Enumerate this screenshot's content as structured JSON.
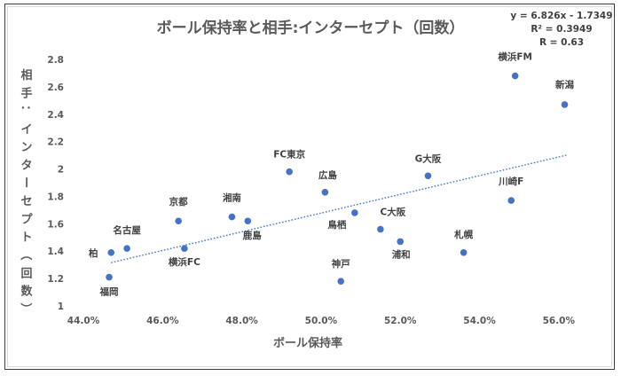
{
  "chart_data": {
    "type": "scatter",
    "title": "ボール保持率と相手:インターセプト（回数）",
    "xlabel": "ボール保持率",
    "ylabel": "相手：インターセプト（回数）",
    "xlim": [
      0.44,
      0.57
    ],
    "ylim": [
      1.0,
      2.8
    ],
    "x_ticks": [
      0.44,
      0.46,
      0.48,
      0.5,
      0.52,
      0.54,
      0.56
    ],
    "x_tick_labels": [
      "44.0%",
      "46.0%",
      "48.0%",
      "50.0%",
      "52.0%",
      "54.0%",
      "56.0%"
    ],
    "y_ticks": [
      1,
      1.2,
      1.4,
      1.6,
      1.8,
      2,
      2.2,
      2.4,
      2.6,
      2.8
    ],
    "y_tick_labels": [
      "1",
      "1.2",
      "1.4",
      "1.6",
      "1.8",
      "2",
      "2.2",
      "2.4",
      "2.6",
      "2.8"
    ],
    "grid": false,
    "point_color": "#4472c4",
    "trendline_color": "#4472c4",
    "trendline": {
      "slope": 6.826,
      "intercept": -1.7349,
      "x_range": [
        0.447,
        0.562
      ],
      "equation": "y = 6.826x - 1.7349",
      "r2": "R² = 0.3949",
      "r": "R = 0.63"
    },
    "points": [
      {
        "name": "柏",
        "x": 0.447,
        "y": 1.39
      },
      {
        "name": "福岡",
        "x": 0.4465,
        "y": 1.21
      },
      {
        "name": "名古屋",
        "x": 0.451,
        "y": 1.42
      },
      {
        "name": "京都",
        "x": 0.464,
        "y": 1.62
      },
      {
        "name": "横浜FC",
        "x": 0.4655,
        "y": 1.42
      },
      {
        "name": "湘南",
        "x": 0.4775,
        "y": 1.65
      },
      {
        "name": "鹿島",
        "x": 0.4815,
        "y": 1.62
      },
      {
        "name": "FC東京",
        "x": 0.492,
        "y": 1.98
      },
      {
        "name": "広島",
        "x": 0.501,
        "y": 1.83
      },
      {
        "name": "鳥栖",
        "x": 0.5085,
        "y": 1.68
      },
      {
        "name": "神戸",
        "x": 0.505,
        "y": 1.18
      },
      {
        "name": "C大阪",
        "x": 0.515,
        "y": 1.56
      },
      {
        "name": "浦和",
        "x": 0.52,
        "y": 1.47
      },
      {
        "name": "G大阪",
        "x": 0.527,
        "y": 1.95
      },
      {
        "name": "札幌",
        "x": 0.536,
        "y": 1.39
      },
      {
        "name": "川崎F",
        "x": 0.548,
        "y": 1.77
      },
      {
        "name": "横浜FM",
        "x": 0.549,
        "y": 2.68
      },
      {
        "name": "新潟",
        "x": 0.5615,
        "y": 2.47
      }
    ]
  }
}
